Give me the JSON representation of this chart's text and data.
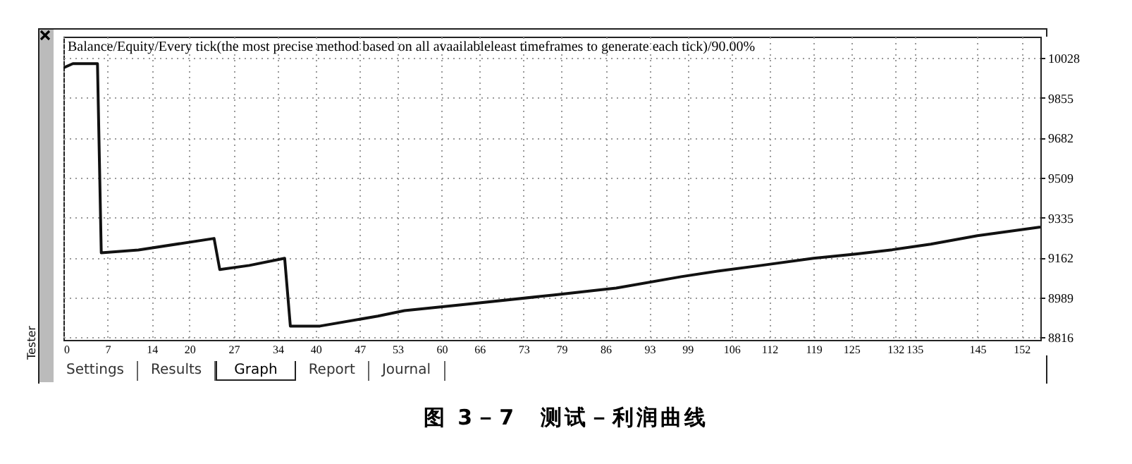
{
  "chart_data": {
    "type": "line",
    "title": "Balance/Equity/Every tick(the most precise method based on all avaailableleast timeframes to generate each tick)/90.00%",
    "subtitle": "图 3－7　测试－利润曲线",
    "annotations": [
      "Settings",
      "Results",
      "Graph",
      "Report",
      "Journal",
      "Tester"
    ],
    "x": [
      0,
      1.5,
      5.4,
      6,
      11.9,
      23.9,
      24.8,
      29.5,
      35.1,
      36,
      40.7,
      49.9,
      54.1,
      63.1,
      77.9,
      83.9,
      87.7,
      98,
      104,
      110.7,
      119,
      125.7,
      131.5,
      137.6,
      145,
      155
    ],
    "series": [
      {
        "color": "#111111",
        "values": [
          9985,
          10003,
          10003,
          9183,
          9195,
          9245,
          9110,
          9128,
          9159,
          8865,
          8865,
          8908,
          8932,
          8957,
          9000,
          9018,
          9030,
          9079,
          9104,
          9128,
          9159,
          9177,
          9196,
          9220,
          9257,
          9294
        ]
      }
    ],
    "xlim": [
      0,
      155
    ],
    "xticks": [
      0,
      7,
      14,
      20,
      27,
      34,
      40,
      47,
      53,
      60,
      66,
      73,
      79,
      86,
      93,
      99,
      106,
      112,
      119,
      125,
      132,
      135,
      145,
      152
    ],
    "ylim": [
      8805,
      10120
    ],
    "yticks": [
      8816,
      8989,
      9162,
      9335,
      9509,
      9682,
      9855,
      10028
    ],
    "grid": true,
    "marker": "none",
    "line_style": "solid"
  }
}
